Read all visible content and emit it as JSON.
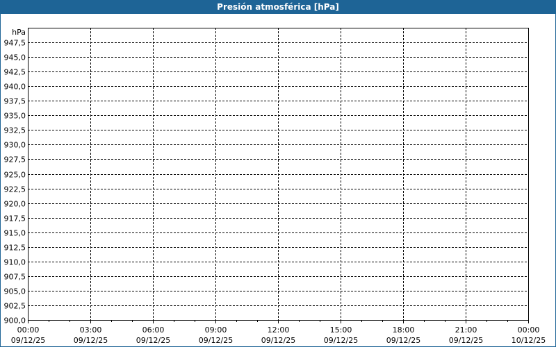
{
  "chart_data": {
    "type": "line",
    "title": "Presión atmosférica [hPa]",
    "ylabel": "hPa",
    "ylim": [
      900,
      950
    ],
    "y_ticks": [
      "900,0",
      "902,5",
      "905,0",
      "907,5",
      "910,0",
      "912,5",
      "915,0",
      "917,5",
      "920,0",
      "922,5",
      "925,0",
      "927,5",
      "930,0",
      "932,5",
      "935,0",
      "937,5",
      "940,0",
      "942,5",
      "945,0",
      "947,5"
    ],
    "x_ticks": [
      {
        "time": "00:00",
        "date": "09/12/25"
      },
      {
        "time": "03:00",
        "date": "09/12/25"
      },
      {
        "time": "06:00",
        "date": "09/12/25"
      },
      {
        "time": "09:00",
        "date": "09/12/25"
      },
      {
        "time": "12:00",
        "date": "09/12/25"
      },
      {
        "time": "15:00",
        "date": "09/12/25"
      },
      {
        "time": "18:00",
        "date": "09/12/25"
      },
      {
        "time": "21:00",
        "date": "09/12/25"
      },
      {
        "time": "00:00",
        "date": "10/12/25"
      }
    ],
    "grid": true,
    "series": [],
    "colors": {
      "title_bar": "#1e6496",
      "grid": "#000000"
    }
  }
}
